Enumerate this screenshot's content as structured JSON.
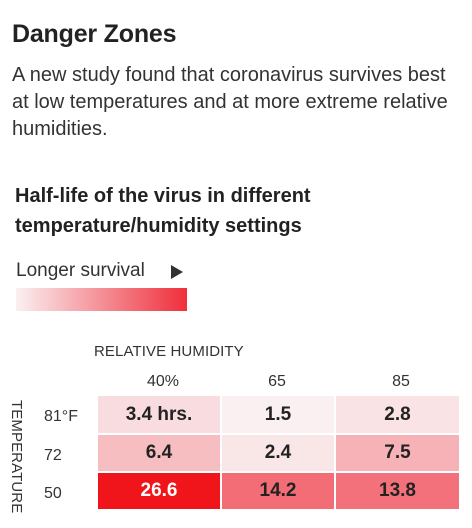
{
  "headline": "Danger Zones",
  "dek": "A new study found that coronavirus survives best at low temperatures and at more extreme relative humidities.",
  "chart_data": {
    "type": "heatmap",
    "title": "Half-life of the virus in different temperature/humidity settings",
    "legend": {
      "label": "Longer survival",
      "arrow_icon": "right-triangle-icon",
      "color_low": "#faf0f1",
      "color_high": "#ef2f3b"
    },
    "x_axis_label": "RELATIVE HUMIDITY",
    "y_axis_label": "TEMPERATURE",
    "columns": [
      "40%",
      "65",
      "85"
    ],
    "rows": [
      "81°F",
      "72",
      "50"
    ],
    "values": [
      [
        3.4,
        1.5,
        2.8
      ],
      [
        6.4,
        2.4,
        7.5
      ],
      [
        26.6,
        14.2,
        13.8
      ]
    ],
    "cell_labels": [
      [
        "3.4 hrs.",
        "1.5",
        "2.8"
      ],
      [
        "6.4",
        "2.4",
        "7.5"
      ],
      [
        "26.6",
        "14.2",
        "13.8"
      ]
    ],
    "highlight_color": "#f0151b"
  }
}
